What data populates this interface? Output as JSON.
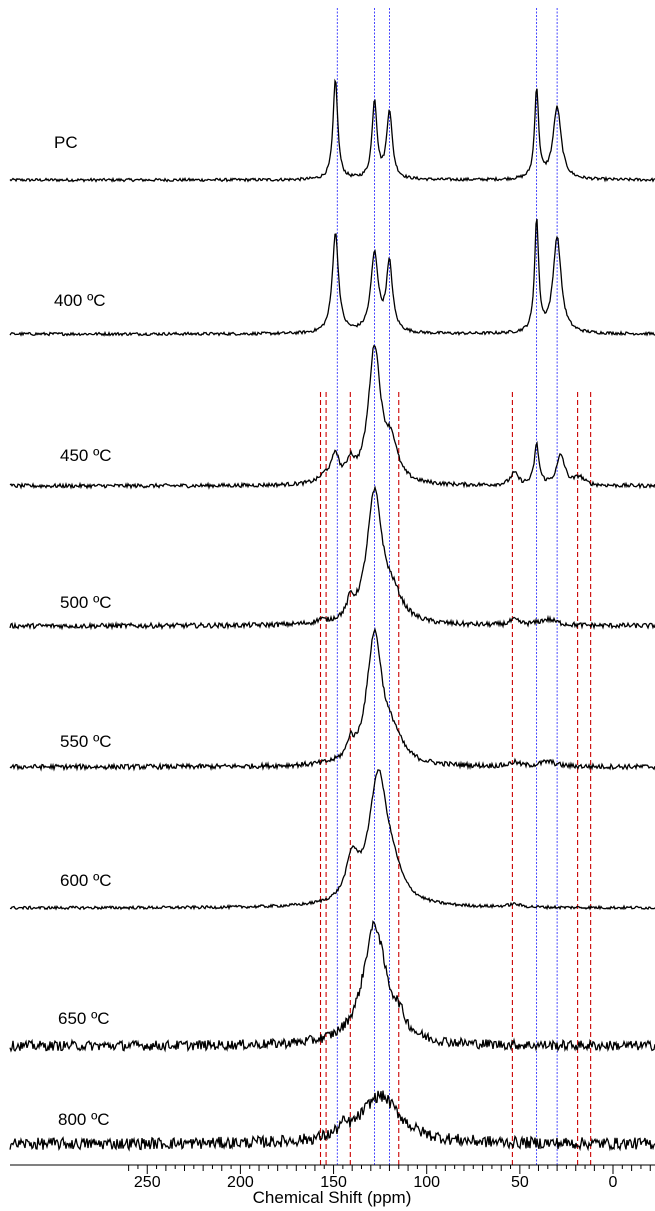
{
  "chart_data": {
    "type": "line",
    "title": "",
    "xlabel": "Chemical Shift (ppm)",
    "ylabel": "",
    "x_reversed": true,
    "xlim": [
      260,
      -20
    ],
    "grid": false,
    "x_ticks": [
      250,
      200,
      150,
      100,
      50,
      0
    ],
    "colors": {
      "trace": "#000000",
      "blue_ref": "#1a1aff",
      "red_ref": "#cc0000"
    },
    "blue_reference_lines_ppm": [
      148,
      128,
      120,
      41,
      30
    ],
    "red_reference_lines_ppm": [
      157,
      154,
      141,
      115,
      54,
      19,
      12
    ],
    "series": [
      {
        "name": "PC",
        "noise": 1.5,
        "peaks": [
          [
            149,
            1.5,
            100
          ],
          [
            128,
            1.6,
            78
          ],
          [
            120,
            1.8,
            68
          ],
          [
            41,
            1.3,
            90
          ],
          [
            30,
            2.6,
            72
          ]
        ]
      },
      {
        "name": "400 ºC",
        "noise": 1.5,
        "peaks": [
          [
            149,
            2.0,
            100
          ],
          [
            128,
            2.4,
            78
          ],
          [
            120,
            2.0,
            68
          ],
          [
            41,
            1.3,
            112
          ],
          [
            30,
            2.6,
            96
          ]
        ]
      },
      {
        "name": "450 ºC",
        "noise": 2.0,
        "peaks": [
          [
            149,
            2.2,
            26
          ],
          [
            141,
            2.5,
            18
          ],
          [
            154,
            4.0,
            8
          ],
          [
            128,
            4.0,
            135
          ],
          [
            119,
            4.0,
            35
          ],
          [
            53,
            2.5,
            12
          ],
          [
            41,
            1.5,
            40
          ],
          [
            28,
            2.6,
            30
          ],
          [
            18,
            3.0,
            8
          ]
        ]
      },
      {
        "name": "500 ºC",
        "noise": 2.5,
        "peaks": [
          [
            141,
            2.0,
            16
          ],
          [
            128,
            5.0,
            130
          ],
          [
            118,
            6.0,
            22
          ],
          [
            157,
            2.0,
            3
          ],
          [
            53,
            3.0,
            5
          ],
          [
            35,
            6.0,
            6
          ]
        ]
      },
      {
        "name": "550 ºC",
        "noise": 2.5,
        "peaks": [
          [
            141,
            2.0,
            16
          ],
          [
            128,
            5.0,
            130
          ],
          [
            118,
            6.0,
            22
          ],
          [
            53,
            3.0,
            4
          ],
          [
            35,
            5.0,
            5
          ]
        ]
      },
      {
        "name": "600 ºC",
        "noise": 1.5,
        "peaks": [
          [
            140,
            4.0,
            40
          ],
          [
            126,
            6.0,
            128
          ],
          [
            118,
            6.0,
            20
          ],
          [
            53,
            4.0,
            3
          ]
        ]
      },
      {
        "name": "650 ºC",
        "noise": 5.0,
        "peaks": [
          [
            128,
            7.5,
            120
          ],
          [
            115,
            4.0,
            14
          ]
        ]
      },
      {
        "name": "800 ºC",
        "noise": 6.0,
        "peaks": [
          [
            125,
            13.0,
            48
          ],
          [
            145,
            3.0,
            8
          ]
        ]
      }
    ]
  }
}
